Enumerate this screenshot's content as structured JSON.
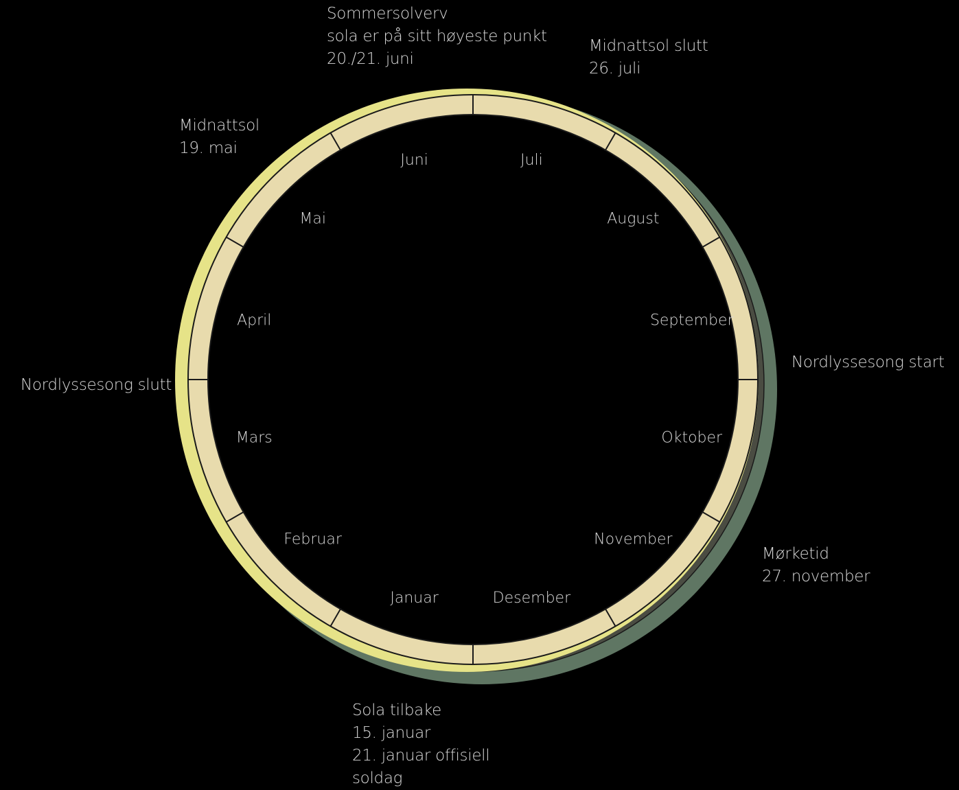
{
  "colors": {
    "background": "#000000",
    "ring_fill": "#e8dbad",
    "ring_stroke": "#1a1a1a",
    "light_band": "#e6e388",
    "dark_band_outer": "#5f7663",
    "dark_band_inner": "#4a4c42",
    "annotation_text": "#d8d8d8",
    "month_text": "#2e2b1f"
  },
  "months": [
    "Januar",
    "Februar",
    "Mars",
    "April",
    "Mai",
    "Juni",
    "Juli",
    "August",
    "September",
    "Oktober",
    "November",
    "Desember"
  ],
  "annotations": {
    "summer_solstice": [
      "Sommersolverv",
      "sola er på sitt høyeste punkt",
      "20./21. juni"
    ],
    "midnight_sun_end": [
      "Midnattsol slutt",
      "26. juli"
    ],
    "midnight_sun": [
      "Midnattsol",
      "19. mai"
    ],
    "aurora_start": [
      "Nordlyssesong start"
    ],
    "aurora_end": [
      "Nordlyssesong slutt"
    ],
    "polar_night": [
      "Mørketid",
      "27. november"
    ],
    "sun_returns": [
      "Sola tilbake",
      "15. januar",
      "21. januar offisiell",
      "soldag"
    ]
  }
}
